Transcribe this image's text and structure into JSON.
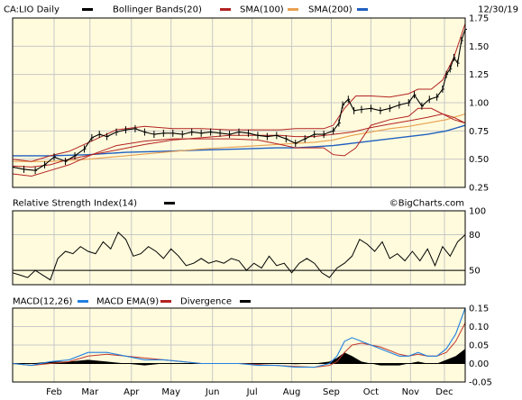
{
  "date_label": "12/30/19",
  "watermark": "©BigCharts.com",
  "legend": {
    "price": [
      {
        "label": "CA:LIO Daily",
        "color": "#000000"
      },
      {
        "label": "Bollinger Bands(20)",
        "color": "#000000"
      },
      {
        "label": "SMA(100)",
        "color": "#b22222"
      },
      {
        "label": "SMA(200)",
        "color": "#e8a050"
      },
      {
        "label": "",
        "color": "#2060c0"
      }
    ],
    "rsi": [
      {
        "label": "Relative Strength Index(14)",
        "color": "#000000"
      }
    ],
    "macd": [
      {
        "label": "MACD(12,26)",
        "color": "#2080e0"
      },
      {
        "label": "MACD EMA(9)",
        "color": "#b22222"
      },
      {
        "label": "Divergence",
        "color": "#000000"
      }
    ]
  },
  "colors": {
    "panel_bg": "#fffbdc",
    "grid": "#c8c8c8",
    "price": "#000000",
    "sma100": "#b22222",
    "sma200": "#e8a050",
    "blue": "#2060c0",
    "macd": "#2080e0",
    "signal": "#c0392b"
  },
  "x_months": [
    "Feb",
    "Mar",
    "Apr",
    "May",
    "Jun",
    "Jul",
    "Aug",
    "Sep",
    "Oct",
    "Nov",
    "Dec"
  ],
  "chart_data": [
    {
      "type": "line",
      "panel": "price",
      "ylim": [
        0.25,
        1.75
      ],
      "yticks": [
        "0.25",
        "0.50",
        "0.75",
        "1.00",
        "1.25",
        "1.50",
        "1.75"
      ],
      "grid": true,
      "x_range": [
        0,
        240
      ],
      "month_positions": [
        22,
        41,
        63,
        84,
        106,
        127,
        148,
        169,
        190,
        211,
        229
      ],
      "series": [
        {
          "name": "CA:LIO Daily",
          "x": [
            0,
            6,
            12,
            17,
            22,
            28,
            33,
            38,
            42,
            46,
            50,
            55,
            60,
            65,
            70,
            75,
            80,
            85,
            90,
            95,
            100,
            105,
            110,
            115,
            120,
            125,
            130,
            135,
            140,
            145,
            150,
            155,
            160,
            165,
            170,
            173,
            175,
            178,
            181,
            185,
            190,
            195,
            200,
            205,
            210,
            213,
            217,
            221,
            225,
            228,
            230,
            232,
            234,
            236,
            238,
            240
          ],
          "values": [
            0.43,
            0.41,
            0.4,
            0.45,
            0.52,
            0.48,
            0.53,
            0.59,
            0.69,
            0.72,
            0.7,
            0.74,
            0.76,
            0.77,
            0.74,
            0.72,
            0.73,
            0.73,
            0.72,
            0.74,
            0.73,
            0.74,
            0.73,
            0.72,
            0.74,
            0.73,
            0.71,
            0.7,
            0.71,
            0.68,
            0.64,
            0.68,
            0.72,
            0.72,
            0.75,
            0.82,
            0.98,
            1.03,
            0.93,
            0.94,
            0.95,
            0.93,
            0.95,
            0.98,
            1.0,
            1.07,
            0.97,
            1.03,
            1.05,
            1.12,
            1.25,
            1.3,
            1.4,
            1.35,
            1.55,
            1.65
          ]
        },
        {
          "name": "Bollinger Upper",
          "x": [
            0,
            10,
            20,
            30,
            42,
            55,
            70,
            85,
            100,
            115,
            130,
            142,
            150,
            158,
            165,
            170,
            176,
            182,
            190,
            200,
            210,
            215,
            222,
            228,
            234,
            240
          ],
          "values": [
            0.5,
            0.48,
            0.53,
            0.57,
            0.66,
            0.76,
            0.79,
            0.77,
            0.77,
            0.76,
            0.76,
            0.76,
            0.77,
            0.77,
            0.77,
            0.8,
            0.95,
            1.06,
            1.06,
            1.05,
            1.08,
            1.12,
            1.12,
            1.2,
            1.4,
            1.7
          ]
        },
        {
          "name": "Bollinger Lower",
          "x": [
            0,
            10,
            20,
            30,
            42,
            55,
            70,
            85,
            100,
            115,
            130,
            142,
            150,
            158,
            165,
            170,
            176,
            182,
            190,
            200,
            210,
            215,
            222,
            228,
            234,
            240
          ],
          "values": [
            0.37,
            0.35,
            0.4,
            0.45,
            0.54,
            0.62,
            0.66,
            0.68,
            0.68,
            0.68,
            0.67,
            0.63,
            0.6,
            0.6,
            0.6,
            0.54,
            0.53,
            0.6,
            0.8,
            0.85,
            0.88,
            0.95,
            0.95,
            0.9,
            0.85,
            0.82
          ]
        },
        {
          "name": "SMA(100)",
          "x": [
            0,
            10,
            20,
            30,
            42,
            55,
            70,
            85,
            100,
            115,
            130,
            142,
            150,
            160,
            170,
            180,
            190,
            200,
            210,
            220,
            228,
            234,
            240
          ],
          "values": [
            0.44,
            0.43,
            0.45,
            0.5,
            0.54,
            0.58,
            0.63,
            0.67,
            0.69,
            0.71,
            0.71,
            0.71,
            0.7,
            0.7,
            0.72,
            0.74,
            0.78,
            0.81,
            0.84,
            0.87,
            0.9,
            0.87,
            0.82
          ]
        },
        {
          "name": "SMA(200)",
          "x": [
            0,
            20,
            40,
            60,
            80,
            100,
            120,
            140,
            150,
            160,
            170,
            180,
            190,
            200,
            210,
            220,
            230,
            240
          ],
          "values": [
            0.48,
            0.48,
            0.5,
            0.53,
            0.56,
            0.59,
            0.61,
            0.63,
            0.64,
            0.65,
            0.67,
            0.71,
            0.74,
            0.77,
            0.79,
            0.82,
            0.85,
            0.9
          ]
        },
        {
          "name": "",
          "x": [
            0,
            20,
            40,
            60,
            80,
            100,
            120,
            140,
            150,
            160,
            170,
            180,
            190,
            200,
            210,
            220,
            230,
            240
          ],
          "values": [
            0.53,
            0.53,
            0.54,
            0.56,
            0.57,
            0.58,
            0.59,
            0.6,
            0.6,
            0.61,
            0.62,
            0.64,
            0.66,
            0.68,
            0.7,
            0.72,
            0.75,
            0.8
          ]
        }
      ]
    },
    {
      "type": "line",
      "panel": "rsi",
      "ylim": [
        38,
        100
      ],
      "yticks": [
        "50",
        "80",
        "100"
      ],
      "reference_line": 50,
      "grid": true,
      "x_range": [
        0,
        240
      ],
      "series": [
        {
          "name": "Relative Strength Index(14)",
          "x": [
            0,
            4,
            8,
            12,
            16,
            20,
            24,
            28,
            32,
            36,
            40,
            44,
            48,
            52,
            56,
            60,
            64,
            68,
            72,
            76,
            80,
            84,
            88,
            92,
            96,
            100,
            104,
            108,
            112,
            116,
            120,
            124,
            128,
            132,
            136,
            140,
            144,
            148,
            152,
            156,
            160,
            164,
            168,
            172,
            176,
            180,
            184,
            188,
            192,
            196,
            200,
            204,
            208,
            212,
            216,
            220,
            224,
            228,
            232,
            236,
            240
          ],
          "values": [
            48,
            46,
            44,
            50,
            46,
            42,
            60,
            66,
            64,
            70,
            66,
            64,
            74,
            68,
            82,
            76,
            62,
            64,
            70,
            66,
            60,
            68,
            62,
            54,
            56,
            60,
            56,
            58,
            56,
            60,
            58,
            50,
            56,
            52,
            62,
            54,
            56,
            48,
            56,
            60,
            56,
            48,
            44,
            52,
            56,
            62,
            76,
            72,
            66,
            74,
            60,
            64,
            58,
            66,
            58,
            68,
            54,
            70,
            62,
            74,
            80
          ]
        }
      ]
    },
    {
      "type": "line",
      "panel": "macd",
      "ylim": [
        -0.05,
        0.15
      ],
      "yticks": [
        "-0.05",
        "0.00",
        "0.05",
        "0.10",
        "0.15"
      ],
      "grid": true,
      "x_range": [
        0,
        240
      ],
      "series": [
        {
          "name": "MACD(12,26)",
          "x": [
            0,
            10,
            20,
            30,
            40,
            50,
            60,
            70,
            80,
            90,
            100,
            110,
            120,
            130,
            140,
            150,
            160,
            168,
            172,
            176,
            180,
            185,
            190,
            195,
            200,
            205,
            210,
            215,
            220,
            225,
            230,
            235,
            240
          ],
          "values": [
            0.0,
            -0.005,
            0.005,
            0.01,
            0.03,
            0.03,
            0.02,
            0.01,
            0.01,
            0.005,
            0.0,
            0.0,
            0.0,
            -0.005,
            -0.005,
            -0.01,
            -0.01,
            0.0,
            0.02,
            0.06,
            0.07,
            0.06,
            0.05,
            0.04,
            0.03,
            0.02,
            0.02,
            0.03,
            0.02,
            0.02,
            0.04,
            0.08,
            0.15
          ]
        },
        {
          "name": "MACD EMA(9)",
          "x": [
            0,
            10,
            20,
            30,
            40,
            50,
            60,
            70,
            80,
            90,
            100,
            110,
            120,
            130,
            140,
            150,
            160,
            168,
            172,
            176,
            180,
            185,
            190,
            195,
            200,
            205,
            210,
            215,
            220,
            225,
            230,
            235,
            240
          ],
          "values": [
            0.0,
            -0.005,
            0.0,
            0.005,
            0.02,
            0.025,
            0.02,
            0.015,
            0.01,
            0.005,
            0.0,
            0.0,
            0.0,
            -0.003,
            -0.005,
            -0.008,
            -0.01,
            -0.005,
            0.005,
            0.03,
            0.05,
            0.055,
            0.05,
            0.045,
            0.035,
            0.025,
            0.02,
            0.025,
            0.02,
            0.02,
            0.03,
            0.06,
            0.11
          ]
        },
        {
          "name": "Divergence",
          "x": [
            0,
            10,
            20,
            30,
            40,
            50,
            60,
            70,
            80,
            90,
            100,
            110,
            120,
            130,
            140,
            150,
            160,
            168,
            172,
            176,
            180,
            185,
            190,
            195,
            200,
            205,
            210,
            215,
            220,
            225,
            230,
            235,
            240
          ],
          "values": [
            0.0,
            0.0,
            0.005,
            0.005,
            0.01,
            0.005,
            0.0,
            -0.005,
            0.0,
            0.0,
            0.0,
            0.0,
            0.0,
            -0.002,
            0.0,
            -0.002,
            0.0,
            0.005,
            0.015,
            0.03,
            0.02,
            0.005,
            0.0,
            -0.005,
            -0.005,
            -0.005,
            0.0,
            0.005,
            0.0,
            0.0,
            0.01,
            0.02,
            0.04
          ]
        }
      ]
    }
  ]
}
